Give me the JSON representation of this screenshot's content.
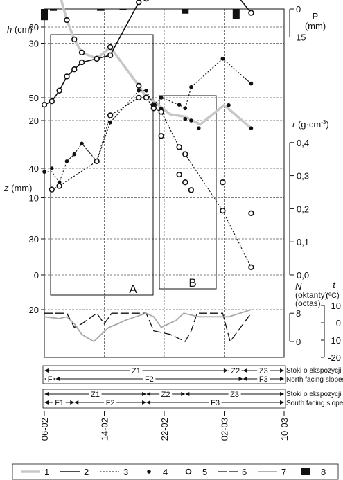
{
  "chart_data": [
    {
      "id": "precip",
      "type": "bar",
      "ylabel": "P (mm)",
      "ylabel_lines": [
        "P",
        "(mm)"
      ],
      "ylim": [
        0,
        15
      ],
      "yticks": [
        0,
        15
      ],
      "x": [
        6.0,
        7.2,
        13.5,
        16.5,
        24.8,
        31.6
      ],
      "values": [
        6,
        1,
        1,
        0.5,
        2.5,
        5.5
      ],
      "color": "#111111"
    },
    {
      "id": "snow_depth",
      "type": "line",
      "ylabel": "h (cm)",
      "ylim": [
        0,
        40
      ],
      "yticks": [
        0,
        10,
        20,
        30,
        40
      ],
      "series": [
        {
          "key": "1",
          "style": "gray-thick",
          "x": [
            6.1,
            7.0,
            8.0,
            9.0,
            10.0,
            11.0,
            13.0,
            14.8,
            18.6,
            19.6,
            20.6,
            22.8,
            24.8,
            26.8,
            30.0,
            33.6
          ],
          "y": [
            37,
            39.5,
            36.5,
            33,
            30.5,
            28.8,
            28,
            29.5,
            24.5,
            23,
            22.5,
            20.8,
            20.5,
            19.5,
            22,
            19
          ]
        },
        {
          "key": "4",
          "style": "dot-filled",
          "x": [
            21.6,
            24.8,
            25.6,
            26.6,
            30.6,
            33.6
          ],
          "y": [
            21.5,
            20.2,
            20,
            19,
            22,
            19
          ]
        },
        {
          "key": "5",
          "style": "circle-open",
          "x": [
            6.0,
            7.0,
            8.0,
            9.0,
            10.0,
            11.0,
            13.0,
            14.8,
            18.6,
            19.6,
            20.6,
            21.6,
            24.0,
            24.8,
            25.6,
            29.8,
            33.6
          ],
          "y": [
            37,
            39.5,
            36.5,
            33,
            30.5,
            28.8,
            28,
            29.5,
            24.5,
            23,
            22,
            18,
            13,
            12,
            11,
            12,
            8
          ]
        }
      ]
    },
    {
      "id": "density",
      "type": "line",
      "ylabel": "r (g·cm-3)",
      "ylim": [
        0,
        0.4
      ],
      "yticks": [
        0.0,
        0.1,
        0.2,
        0.3,
        0.4
      ],
      "ytick_labels": [
        "0,0",
        "0,1",
        "0,2",
        "0,3",
        "0,4"
      ]
    },
    {
      "id": "frost_depth",
      "type": "line",
      "ylabel": "z (mm)",
      "ylim": [
        20,
        70
      ],
      "yticks": [
        20,
        30,
        40,
        50,
        60
      ],
      "series": [
        {
          "key": "2",
          "style": "solid",
          "x": [
            6.0,
            7.0,
            8.0,
            9.0,
            10.0,
            11.0,
            13.0,
            14.8,
            18.6,
            19.6,
            20.6,
            21.6,
            24.0,
            24.8,
            25.6,
            29.8,
            33.6
          ],
          "y": [
            49,
            49.5,
            51,
            53,
            54,
            55,
            55.5,
            56,
            63.5,
            65,
            65,
            66,
            71,
            74.5,
            75,
            67,
            62
          ]
        },
        {
          "key": "3",
          "style": "dotted",
          "x": [
            6.0,
            7.0,
            8.0,
            9.0,
            10.0,
            11.0,
            13.0,
            14.8,
            18.6,
            19.6,
            20.6,
            21.6,
            24.0,
            24.8,
            25.6,
            29.8,
            33.6
          ],
          "y": [
            39.5,
            39.5,
            38,
            41,
            42,
            43.5,
            41,
            46.5,
            51,
            51,
            49,
            50,
            49,
            48.5,
            51.5,
            55.5,
            52
          ]
        },
        {
          "key": "4",
          "style": "dot-filled",
          "x": [
            6.0,
            7.0,
            8.0,
            9.0,
            10.0,
            11.0,
            13.0,
            14.8,
            18.6,
            19.6,
            20.6,
            21.6,
            24.0,
            24.8,
            25.6,
            29.8,
            33.6
          ],
          "y": [
            39.5,
            40,
            38,
            41,
            42,
            43.5,
            41,
            46.5,
            51,
            51,
            49,
            50,
            49,
            48.5,
            51.5,
            55.5,
            52
          ]
        },
        {
          "key": "5",
          "style": "circle-open",
          "x": [
            6.0,
            7.0,
            8.0,
            9.0,
            10.0,
            11.0,
            13.0,
            14.8,
            18.6,
            19.6,
            20.6,
            21.6,
            24.0,
            24.8,
            25.6,
            29.8,
            33.6
          ],
          "y": [
            49,
            49.5,
            51,
            53,
            54,
            55,
            55.5,
            56,
            63.5,
            64,
            65,
            65.5,
            71,
            74.5,
            75,
            67,
            62
          ]
        },
        {
          "key": "5b",
          "style": "circle-open",
          "x": [
            7.0,
            8.0,
            13.0,
            14.8,
            18.6,
            19.6,
            20.6,
            21.6,
            24.0,
            24.8,
            29.8,
            33.6
          ],
          "y": [
            37,
            37.5,
            41,
            47.5,
            50,
            50,
            48.5,
            48,
            43,
            42,
            34,
            26
          ]
        }
      ]
    },
    {
      "id": "cloud_temp",
      "type": "line",
      "ylabel": "N (oktanty) (octas)",
      "ylabel_lines": [
        "N",
        "(oktanty)",
        "(octas)"
      ],
      "y2label": "t (°C)",
      "ylim": [
        0,
        8
      ],
      "y2lim": [
        -20,
        10
      ],
      "yticks": [
        0,
        8
      ],
      "y2ticks": [
        10,
        0,
        -10,
        -20
      ],
      "series": [
        {
          "key": "6",
          "style": "dash-long",
          "x": [
            6.0,
            9.0,
            10.0,
            11.0,
            13.0,
            14.0,
            15.0,
            16.0,
            17.0,
            19.6,
            20.6,
            22.8,
            24.8,
            25.6,
            26.4,
            29.8,
            30.8,
            33.6
          ],
          "y": [
            8,
            8,
            4,
            5,
            8,
            5,
            8,
            8,
            8,
            8,
            3,
            2,
            0,
            3,
            8,
            8,
            0,
            8
          ]
        },
        {
          "key": "7",
          "style": "gray-solid",
          "x": [
            6.0,
            8.0,
            9.0,
            10.0,
            11.0,
            12.6,
            13.6,
            14.6,
            15.8,
            16.8,
            19.6,
            20.6,
            21.6,
            22.6,
            23.6,
            24.6,
            26.6,
            30.6,
            33.6
          ],
          "y": [
            7,
            6.5,
            7,
            5,
            2,
            0,
            2,
            4,
            5,
            6,
            8,
            7,
            4,
            5,
            6,
            8,
            7,
            7,
            9
          ]
        }
      ]
    }
  ],
  "axis": {
    "x_ticks": [
      "06-02",
      "14-02",
      "22-02",
      "02-03",
      "10-03"
    ],
    "x_tick_days": [
      6,
      14,
      22,
      30,
      38
    ]
  },
  "boxes": [
    {
      "label": "A"
    },
    {
      "label": "B"
    }
  ],
  "period_strips": [
    {
      "id": "north",
      "caption_pl": "Stoki o ekspozycji N",
      "caption_en": "North facing slopes",
      "row1": [
        "Z1",
        "Z2",
        "Z3"
      ],
      "row2": [
        "F",
        "F2",
        "F3"
      ]
    },
    {
      "id": "south",
      "caption_pl": "Stoki o ekspozycji S",
      "caption_en": "South facing slopes",
      "row1": [
        "Z1",
        "Z2",
        "Z3"
      ],
      "row2": [
        "F1",
        "F2",
        "F3"
      ]
    }
  ],
  "legend": [
    {
      "key": "1",
      "symbol": "gray-thick"
    },
    {
      "key": "2",
      "symbol": "solid"
    },
    {
      "key": "3",
      "symbol": "dotted"
    },
    {
      "key": "4",
      "symbol": "dot-filled"
    },
    {
      "key": "5",
      "symbol": "circle-open"
    },
    {
      "key": "6",
      "symbol": "dash-long"
    },
    {
      "key": "7",
      "symbol": "gray-solid"
    },
    {
      "key": "8",
      "symbol": "black-bar"
    }
  ],
  "colors": {
    "ink": "#111111",
    "gray_line": "#c8c8c8",
    "gray_thin": "#a8a8a8",
    "grid": "#555555"
  }
}
